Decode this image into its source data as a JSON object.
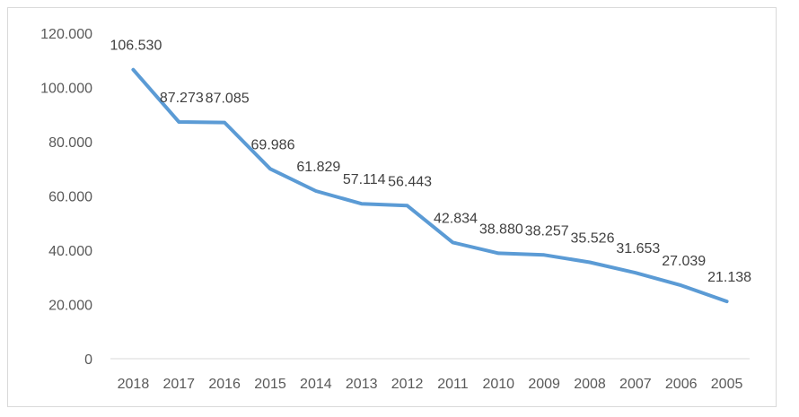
{
  "chart_data": {
    "type": "line",
    "title": "",
    "xlabel": "",
    "ylabel": "",
    "categories": [
      "2018",
      "2017",
      "2016",
      "2015",
      "2014",
      "2013",
      "2012",
      "2011",
      "2010",
      "2009",
      "2008",
      "2007",
      "2006",
      "2005"
    ],
    "series": [
      {
        "values": [
          106.53,
          87.273,
          87.085,
          69.986,
          61.829,
          57.114,
          56.443,
          42.834,
          38.88,
          38.257,
          35.526,
          31.653,
          27.039,
          21.138
        ],
        "labels": [
          "106.530",
          "87.273",
          "87.085",
          "69.986",
          "61.829",
          "57.114",
          "56.443",
          "42.834",
          "38.880",
          "38.257",
          "35.526",
          "31.653",
          "27.039",
          "21.138"
        ]
      }
    ],
    "ylim": [
      0,
      120
    ],
    "yticks": [
      {
        "value": 0,
        "label": "0"
      },
      {
        "value": 20,
        "label": "20.000"
      },
      {
        "value": 40,
        "label": "40.000"
      },
      {
        "value": 60,
        "label": "60.000"
      },
      {
        "value": 80,
        "label": "80.000"
      },
      {
        "value": 100,
        "label": "100.000"
      },
      {
        "value": 120,
        "label": "120.000"
      }
    ],
    "grid": false,
    "legend": "none",
    "line_color": "#5B9BD5"
  }
}
